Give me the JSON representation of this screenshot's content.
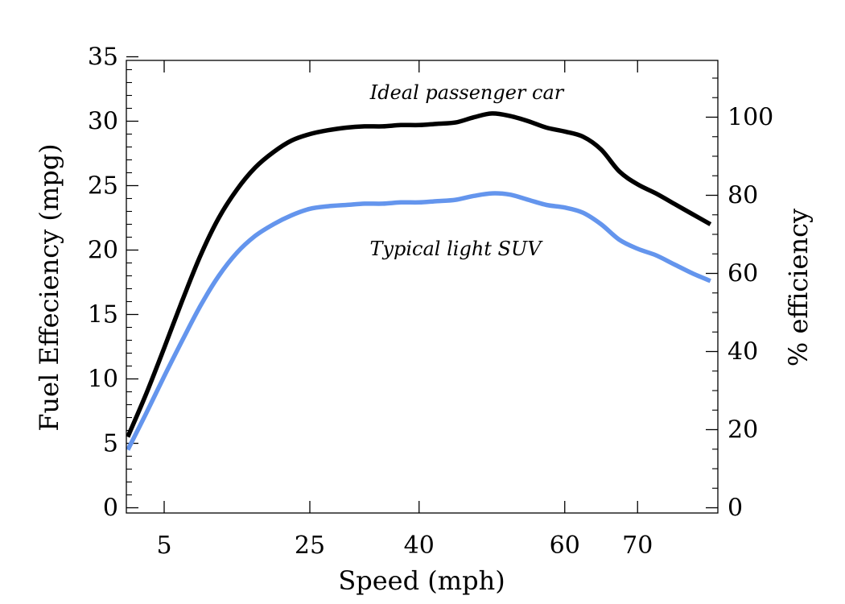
{
  "chart_data": {
    "type": "line",
    "title": "",
    "xlabel": "Speed (mph)",
    "ylabel": "Fuel Effeciency (mpg)",
    "ylabel_right": "% efficiency",
    "xlim": [
      0,
      80
    ],
    "ylim": [
      0,
      35
    ],
    "ylim_right": [
      0,
      115
    ],
    "x_ticks": [
      5,
      25,
      40,
      60,
      70
    ],
    "x_tick_labels": [
      "5",
      "25",
      "40",
      "60",
      "70"
    ],
    "y_ticks": [
      0,
      5,
      10,
      15,
      20,
      25,
      30,
      35
    ],
    "y_tick_labels": [
      "0",
      "5",
      "10",
      "15",
      "20",
      "25",
      "30",
      "35"
    ],
    "y_right_ticks": [
      0,
      20,
      40,
      60,
      80,
      100
    ],
    "y_right_tick_labels": [
      "0",
      "20",
      "40",
      "60",
      "80",
      "100"
    ],
    "grid": false,
    "annotations": [
      {
        "text": "Ideal passenger car",
        "x": 40,
        "y": 32.5
      },
      {
        "text": "Typical light SUV",
        "x": 40,
        "y": 20.2
      }
    ],
    "series": [
      {
        "color": "#000000",
        "x": [
          0,
          2.5,
          5,
          7.5,
          10,
          12.5,
          15,
          17.5,
          20,
          22.5,
          25,
          27.5,
          30,
          32.5,
          35,
          37.5,
          40,
          42.5,
          45,
          47.5,
          50,
          52.5,
          55,
          57.5,
          60,
          62.5,
          65,
          67.5,
          70,
          72.5,
          75,
          77.5,
          80
        ],
        "values": [
          5.5,
          8.8,
          12.4,
          16.1,
          19.6,
          22.5,
          24.7,
          26.4,
          27.6,
          28.5,
          29.0,
          29.3,
          29.5,
          29.6,
          29.6,
          29.7,
          29.7,
          29.8,
          29.9,
          30.3,
          30.6,
          30.4,
          30.0,
          29.5,
          29.2,
          28.8,
          27.8,
          26.1,
          25.1,
          24.4,
          23.6,
          22.8,
          22.0
        ]
      },
      {
        "color": "#6495ed",
        "x": [
          0,
          2.5,
          5,
          7.5,
          10,
          12.5,
          15,
          17.5,
          20,
          22.5,
          25,
          27.5,
          30,
          32.5,
          35,
          37.5,
          40,
          42.5,
          45,
          47.5,
          50,
          52.5,
          55,
          57.5,
          60,
          62.5,
          65,
          67.5,
          70,
          72.5,
          75,
          77.5,
          80
        ],
        "values": [
          4.5,
          7.3,
          10.2,
          13.0,
          15.7,
          18.0,
          19.8,
          21.1,
          22.0,
          22.7,
          23.2,
          23.4,
          23.5,
          23.6,
          23.6,
          23.7,
          23.7,
          23.8,
          23.9,
          24.2,
          24.4,
          24.3,
          23.9,
          23.5,
          23.3,
          22.9,
          22.0,
          20.8,
          20.1,
          19.6,
          18.9,
          18.2,
          17.6
        ]
      }
    ]
  }
}
